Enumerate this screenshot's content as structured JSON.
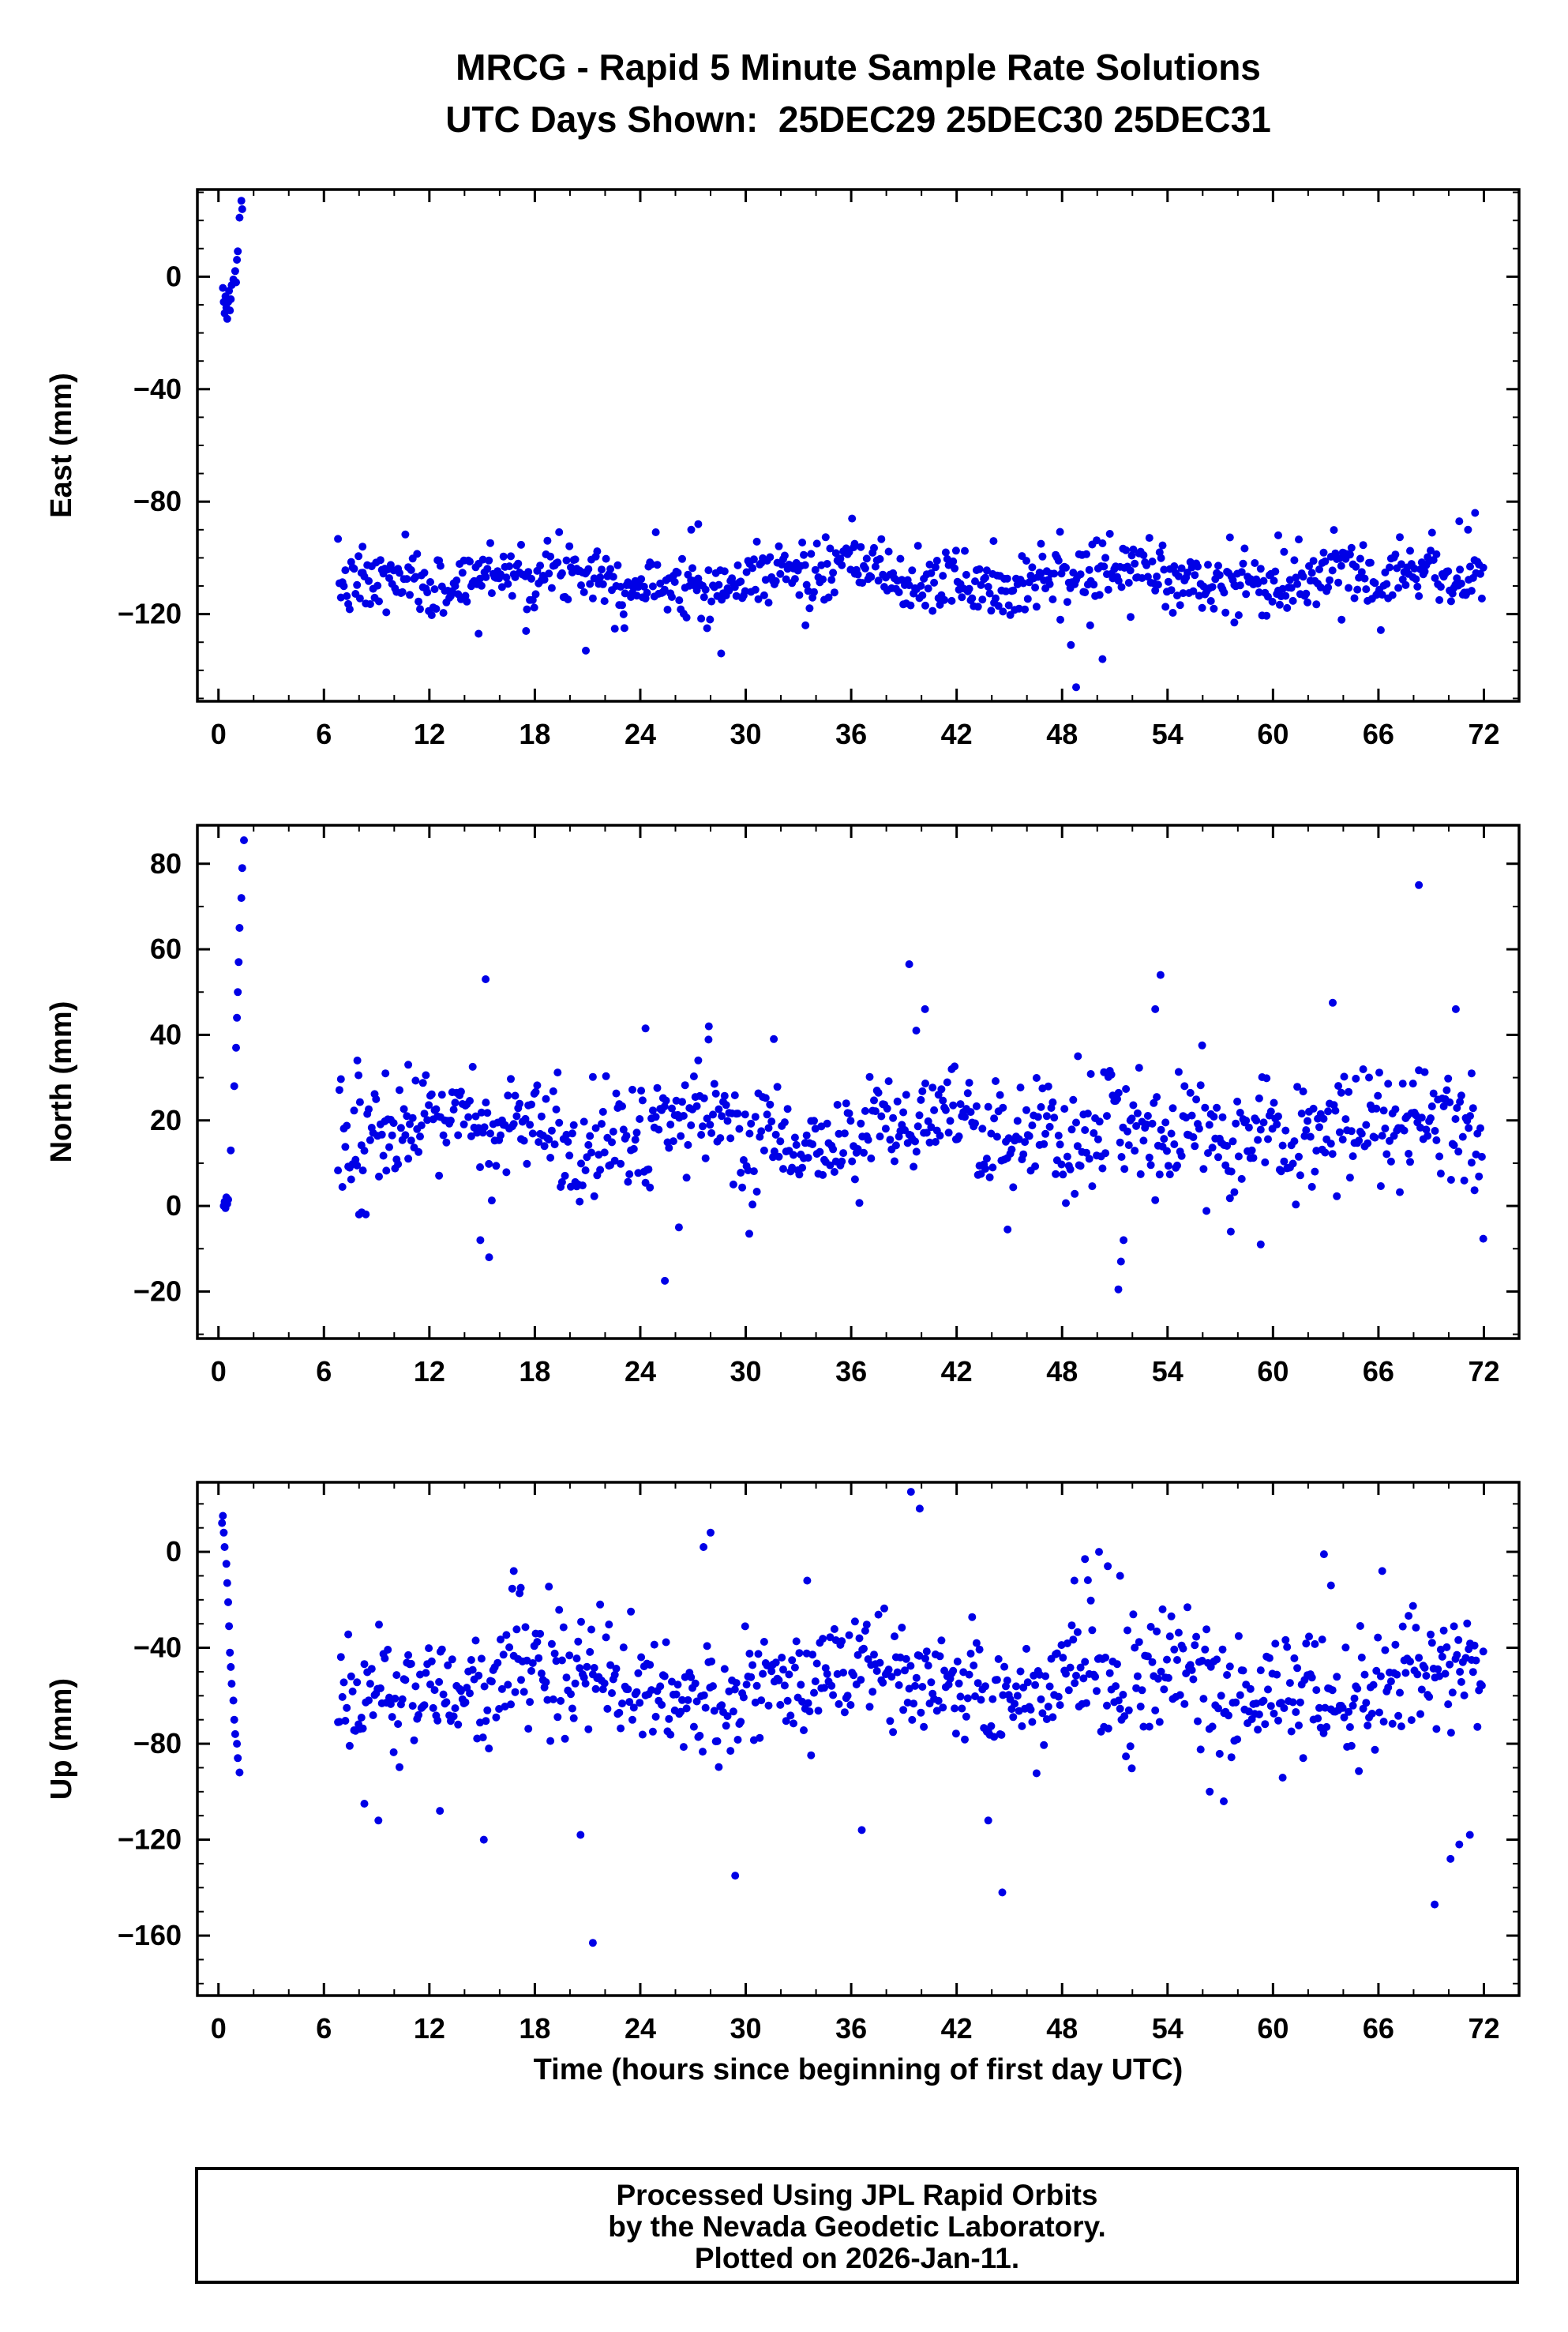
{
  "header": {
    "title_line1": "MRCG - Rapid 5 Minute Sample Rate Solutions",
    "title_line2": "UTC Days Shown:  25DEC29 25DEC30 25DEC31"
  },
  "xaxis": {
    "label": "Time (hours since beginning of first day UTC)",
    "min": -1.2,
    "max": 74,
    "major_ticks": [
      0,
      6,
      12,
      18,
      24,
      30,
      36,
      42,
      48,
      54,
      60,
      66,
      72
    ],
    "minor_step": 2
  },
  "style": {
    "point_color": "#0000e6",
    "frame_color": "#000000",
    "background": "#ffffff",
    "point_radius": 5
  },
  "chart_data": [
    {
      "type": "scatter",
      "name": "east",
      "ylabel": "East (mm)",
      "ylim": [
        -151,
        31
      ],
      "yticks": [
        0,
        -40,
        -80,
        -120
      ],
      "yminor_step": 10,
      "band": {
        "seed": 7,
        "start": 6.8,
        "end": 72,
        "interval": 0.0833333,
        "mean": -107,
        "std": 5.5,
        "wander": [
          [
            3,
            16,
            0.5
          ],
          [
            2,
            5.3,
            2.1
          ]
        ],
        "clip": [
          -132,
          -86
        ]
      },
      "initial_cluster": [
        [
          0.25,
          -4
        ],
        [
          0.3,
          -9
        ],
        [
          0.35,
          -13
        ],
        [
          0.4,
          -7
        ],
        [
          0.45,
          -11
        ],
        [
          0.5,
          -15
        ],
        [
          0.55,
          -9
        ],
        [
          0.6,
          -5
        ],
        [
          0.65,
          -12
        ],
        [
          0.7,
          -8
        ],
        [
          0.75,
          -3
        ],
        [
          0.85,
          -1
        ],
        [
          0.95,
          2
        ],
        [
          1.0,
          -2
        ],
        [
          1.05,
          6
        ],
        [
          1.1,
          9
        ],
        [
          1.2,
          21
        ],
        [
          1.3,
          27
        ],
        [
          1.35,
          24
        ]
      ],
      "outliers": [
        [
          8.2,
          -96
        ],
        [
          14.8,
          -127
        ],
        [
          17.5,
          -126
        ],
        [
          20.9,
          -133
        ],
        [
          23.1,
          -125
        ],
        [
          26.9,
          -90
        ],
        [
          27.3,
          -88
        ],
        [
          28.6,
          -134
        ],
        [
          33.4,
          -124
        ],
        [
          36.2,
          -95
        ],
        [
          44.1,
          -94
        ],
        [
          46.8,
          -95
        ],
        [
          47.9,
          -122
        ],
        [
          48.5,
          -131
        ],
        [
          48.8,
          -146
        ],
        [
          49.6,
          -124
        ],
        [
          50.3,
          -136
        ],
        [
          51.9,
          -121
        ],
        [
          57.8,
          -123
        ],
        [
          60.3,
          -92
        ],
        [
          63.9,
          -122
        ],
        [
          70.6,
          -87
        ],
        [
          71.1,
          -90
        ],
        [
          71.5,
          -84
        ]
      ]
    },
    {
      "type": "scatter",
      "name": "north",
      "ylabel": "North (mm)",
      "ylim": [
        -31,
        89
      ],
      "yticks": [
        80,
        60,
        40,
        20,
        0,
        -20
      ],
      "yminor_step": 10,
      "band": {
        "seed": 13,
        "start": 6.8,
        "end": 72,
        "interval": 0.0833333,
        "mean": 17,
        "std": 6.5,
        "wander": [
          [
            3,
            13,
            1.0
          ],
          [
            2,
            4.7,
            2.6
          ]
        ],
        "clip": [
          -14,
          47
        ]
      },
      "initial_cluster": [
        [
          0.3,
          0
        ],
        [
          0.35,
          1
        ],
        [
          0.4,
          -0.5
        ],
        [
          0.45,
          2
        ],
        [
          0.5,
          0.5
        ],
        [
          0.55,
          1.5
        ],
        [
          0.7,
          13
        ],
        [
          0.9,
          28
        ],
        [
          1.0,
          37
        ],
        [
          1.05,
          44
        ],
        [
          1.1,
          50
        ],
        [
          1.15,
          57
        ],
        [
          1.2,
          65
        ],
        [
          1.3,
          72
        ],
        [
          1.35,
          79
        ],
        [
          1.45,
          85.5
        ]
      ],
      "outliers": [
        [
          7.9,
          34
        ],
        [
          8.0,
          -2
        ],
        [
          8.15,
          -1.5
        ],
        [
          9.5,
          31
        ],
        [
          10.8,
          33
        ],
        [
          14.9,
          -8
        ],
        [
          15.2,
          53
        ],
        [
          15.4,
          -12
        ],
        [
          24.3,
          41.5
        ],
        [
          25.4,
          -17.5
        ],
        [
          26.2,
          -5
        ],
        [
          27.9,
          42
        ],
        [
          30.2,
          -6.5
        ],
        [
          31.6,
          39
        ],
        [
          39.3,
          56.5
        ],
        [
          39.7,
          41
        ],
        [
          40.2,
          46
        ],
        [
          44.9,
          -5.5
        ],
        [
          48.9,
          35
        ],
        [
          51.2,
          -19.5
        ],
        [
          51.35,
          -13
        ],
        [
          51.5,
          -8
        ],
        [
          53.3,
          46
        ],
        [
          53.6,
          54
        ],
        [
          57.6,
          -6
        ],
        [
          59.3,
          -9
        ],
        [
          63.4,
          47.5
        ],
        [
          68.3,
          75
        ],
        [
          70.4,
          46
        ],
        [
          71.3,
          31
        ]
      ]
    },
    {
      "type": "scatter",
      "name": "up",
      "ylabel": "Up (mm)",
      "ylim": [
        -185,
        29
      ],
      "yticks": [
        0,
        -40,
        -80,
        -120,
        -160
      ],
      "yminor_step": 10,
      "band": {
        "seed": 21,
        "start": 6.8,
        "end": 72,
        "interval": 0.0833333,
        "mean": -55,
        "std": 13,
        "wander": [
          [
            6,
            17,
            0.8
          ],
          [
            4,
            6.2,
            2.3
          ]
        ],
        "clip": [
          -112,
          -8
        ]
      },
      "initial_cluster": [
        [
          0.2,
          12
        ],
        [
          0.25,
          15
        ],
        [
          0.3,
          8
        ],
        [
          0.35,
          2
        ],
        [
          0.45,
          -5
        ],
        [
          0.5,
          -13
        ],
        [
          0.55,
          -21
        ],
        [
          0.6,
          -31
        ],
        [
          0.65,
          -42
        ],
        [
          0.7,
          -48
        ],
        [
          0.75,
          -55
        ],
        [
          0.85,
          -62
        ],
        [
          0.9,
          -70
        ],
        [
          0.95,
          -76
        ],
        [
          1.05,
          -80
        ],
        [
          1.1,
          -86
        ],
        [
          1.2,
          -92
        ]
      ],
      "outliers": [
        [
          8.3,
          -105
        ],
        [
          9.1,
          -112
        ],
        [
          12.6,
          -108
        ],
        [
          15.1,
          -120
        ],
        [
          16.8,
          -8
        ],
        [
          17.2,
          -15
        ],
        [
          20.6,
          -118
        ],
        [
          21.3,
          -163
        ],
        [
          27.6,
          2
        ],
        [
          28.0,
          8
        ],
        [
          29.4,
          -135
        ],
        [
          33.5,
          -12
        ],
        [
          36.6,
          -116
        ],
        [
          39.4,
          25
        ],
        [
          39.9,
          18
        ],
        [
          43.8,
          -112
        ],
        [
          44.6,
          -142
        ],
        [
          48.7,
          -12
        ],
        [
          49.3,
          -3
        ],
        [
          50.1,
          0
        ],
        [
          50.6,
          -6
        ],
        [
          51.3,
          -10
        ],
        [
          56.4,
          -100
        ],
        [
          57.2,
          -104
        ],
        [
          62.9,
          -1
        ],
        [
          63.3,
          -14
        ],
        [
          69.2,
          -147
        ],
        [
          70.1,
          -128
        ],
        [
          70.6,
          -122
        ],
        [
          71.2,
          -118
        ]
      ]
    }
  ],
  "footer": {
    "lines": [
      "Processed Using JPL Rapid Orbits",
      "by the Nevada Geodetic Laboratory.",
      "Plotted on 2026-Jan-11."
    ]
  }
}
